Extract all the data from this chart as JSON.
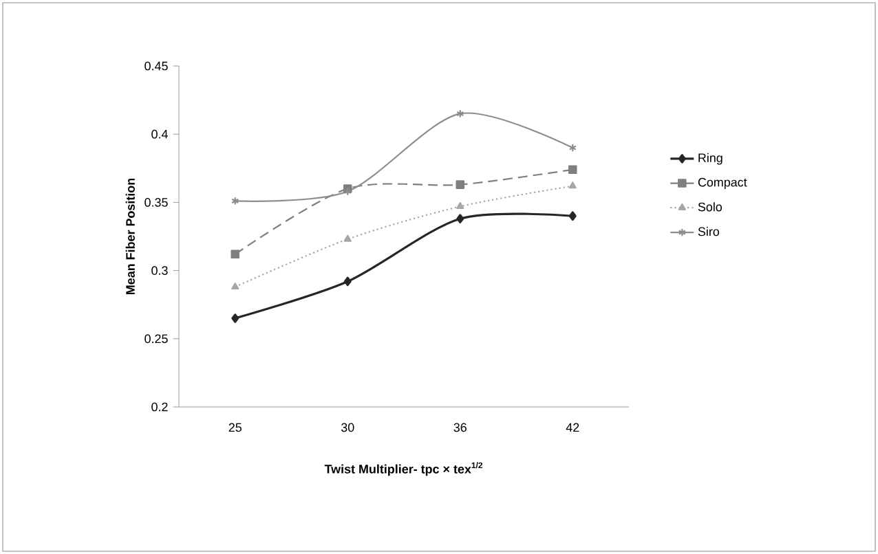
{
  "chart_data": {
    "type": "line",
    "xlabel": "Twist Multiplier- tpc × tex$^{1/2}$",
    "ylabel": "Mean Fiber Position",
    "categories": [
      "25",
      "30",
      "36",
      "42"
    ],
    "series": [
      {
        "name": "Ring",
        "color": "#262626",
        "marker": "diamond",
        "line_style": "solid",
        "values": [
          0.265,
          0.292,
          0.338,
          0.34
        ]
      },
      {
        "name": "Compact",
        "color": "#7f7f7f",
        "marker": "square",
        "line_style": "dashed",
        "values": [
          0.312,
          0.36,
          0.363,
          0.374
        ]
      },
      {
        "name": "Solo",
        "color": "#a6a6a6",
        "marker": "triangle",
        "line_style": "dotted",
        "values": [
          0.288,
          0.323,
          0.347,
          0.362
        ]
      },
      {
        "name": "Siro",
        "color": "#8c8c8c",
        "marker": "cross",
        "line_style": "solid",
        "values": [
          0.351,
          0.358,
          0.415,
          0.39
        ]
      }
    ],
    "ylim": [
      0.2,
      0.45
    ],
    "yticks": [
      0.2,
      0.25,
      0.3,
      0.35,
      0.4,
      0.45
    ],
    "grid": false,
    "legend": "right"
  }
}
